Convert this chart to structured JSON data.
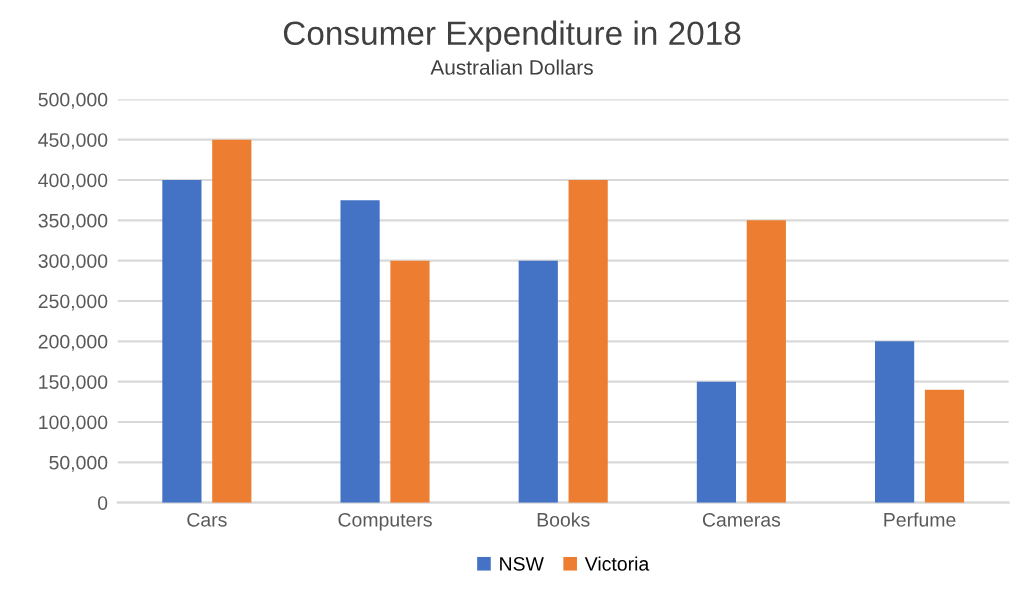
{
  "chart_data": {
    "type": "bar",
    "title": "Consumer Expenditure in 2018",
    "subtitle": "Australian Dollars",
    "categories": [
      "Cars",
      "Computers",
      "Books",
      "Cameras",
      "Perfume"
    ],
    "series": [
      {
        "name": "NSW",
        "color": "#4472c4",
        "values": [
          400000,
          375000,
          300000,
          150000,
          200000
        ]
      },
      {
        "name": "Victoria",
        "color": "#ed7d31",
        "values": [
          450000,
          300000,
          400000,
          350000,
          140000
        ]
      }
    ],
    "ylim": [
      0,
      500000
    ],
    "yticks": [
      {
        "value": 0,
        "label": "0"
      },
      {
        "value": 50000,
        "label": "50,000"
      },
      {
        "value": 100000,
        "label": "100,000"
      },
      {
        "value": 150000,
        "label": "150,000"
      },
      {
        "value": 200000,
        "label": "200,000"
      },
      {
        "value": 250000,
        "label": "250,000"
      },
      {
        "value": 300000,
        "label": "300,000"
      },
      {
        "value": 350000,
        "label": "350,000"
      },
      {
        "value": 400000,
        "label": "400,000"
      },
      {
        "value": 450000,
        "label": "450,000"
      },
      {
        "value": 500000,
        "label": "500,000"
      }
    ],
    "grid": "y",
    "legend": "bottom"
  }
}
